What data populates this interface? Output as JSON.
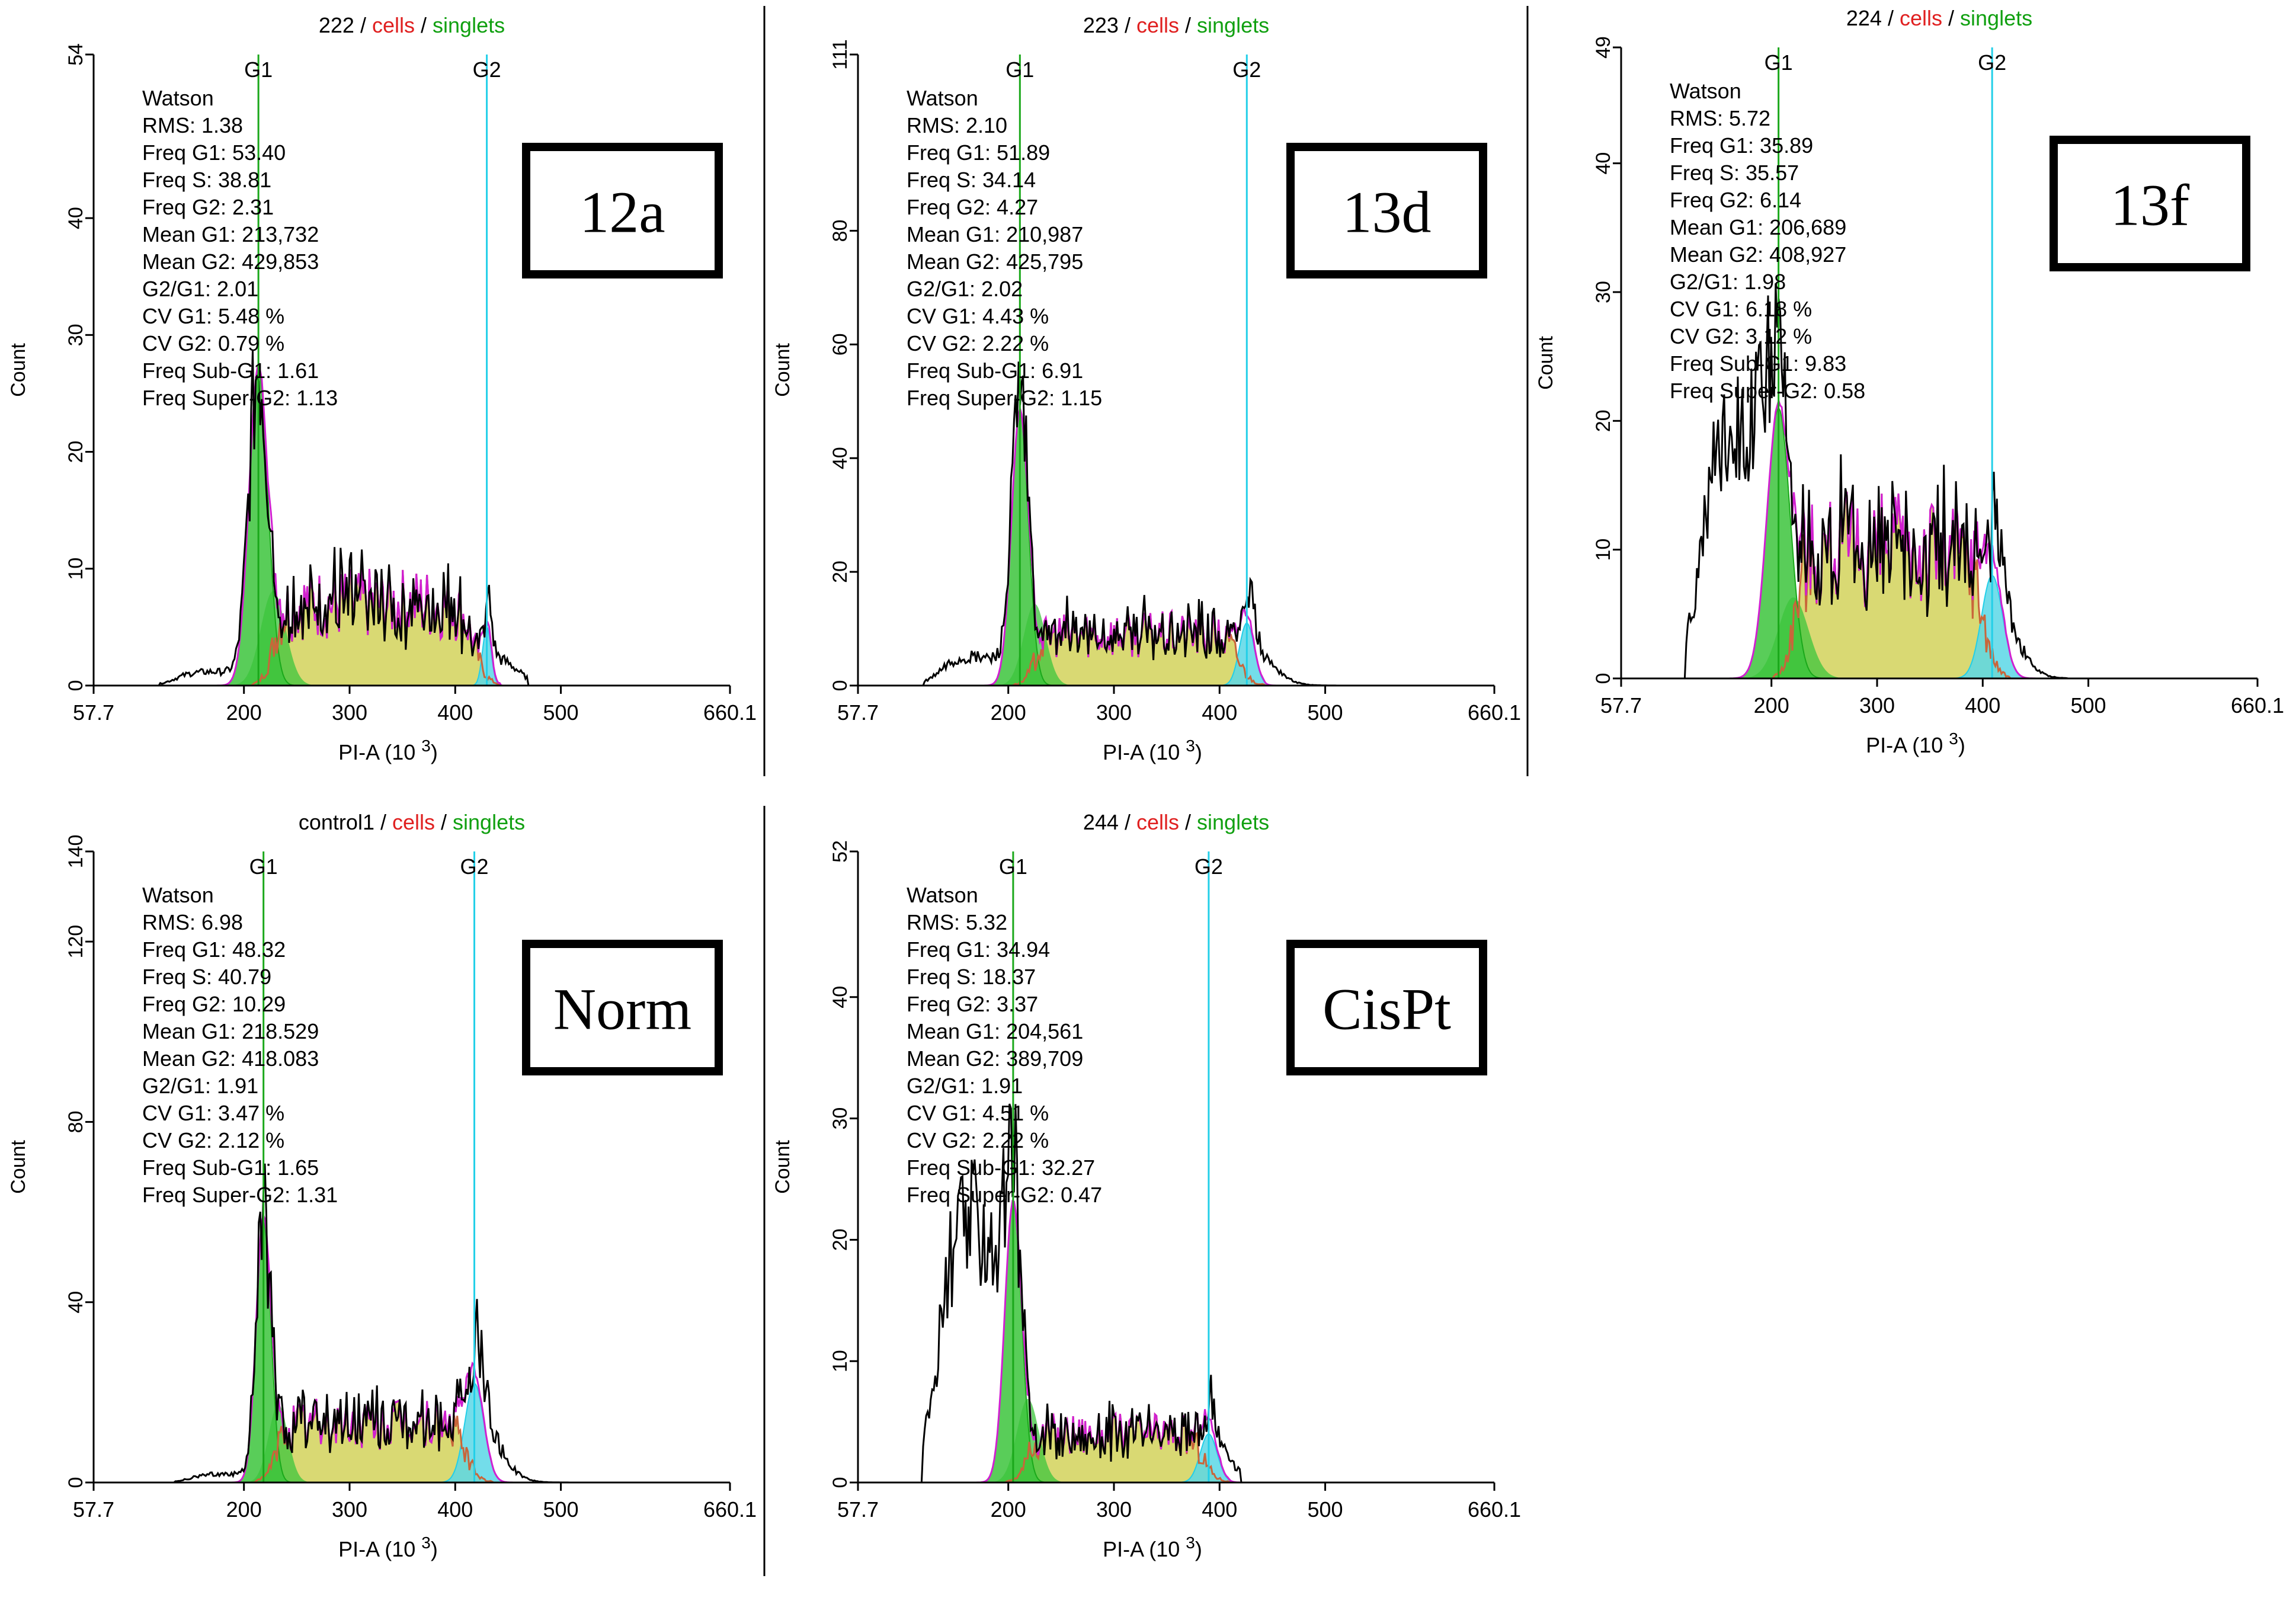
{
  "colors": {
    "g1_fill": "#3cc43c",
    "g1_line": "#1aa81a",
    "s_fill": "#d2d25a",
    "s_line": "#c9653a",
    "g2_fill": "#5ad7e6",
    "g2_line": "#22cfe8",
    "fit_line": "#d020d0",
    "raw_line": "#000000",
    "title_cells": "#e02020",
    "title_singlets": "#10a010"
  },
  "chart_data": [
    {
      "type": "area",
      "sample": "222",
      "title_parts": [
        "222",
        "cells",
        "singlets"
      ],
      "title_sep": " / ",
      "badge": "12a",
      "xlabel": "PI-A",
      "xlabel_unit": "(10",
      "xlabel_exp": "3",
      "xlabel_close": ")",
      "ylabel": "Count",
      "xlim": [
        57.7,
        660.1
      ],
      "ylim": [
        0,
        54
      ],
      "xticks": [
        "57.7",
        "200",
        "300",
        "400",
        "500",
        "660.1"
      ],
      "xtick_values": [
        57.7,
        200,
        300,
        400,
        500,
        660.1
      ],
      "yticks": [
        "0",
        "10",
        "20",
        "30",
        "40",
        "54"
      ],
      "ytick_values": [
        0,
        10,
        20,
        30,
        40,
        54
      ],
      "g1_label": "G1",
      "g2_label": "G2",
      "g1_marker": 213.7,
      "g2_marker": 429.9,
      "model": "Watson",
      "stats": [
        "RMS: 1.38",
        "Freq G1: 53.40",
        "Freq S: 38.81",
        "Freq G2: 2.31",
        "Mean G1: 213,732",
        "Mean G2: 429,853",
        "G2/G1: 2.01",
        "CV G1: 5.48 %",
        "CV G2: 0.79 %",
        "Freq Sub-G1: 1.61",
        "Freq Super-G2: 1.13"
      ],
      "g1": {
        "mean": 213.7,
        "sd": 9,
        "peak": 27
      },
      "s": {
        "start": 228,
        "end": 418,
        "level": 7
      },
      "g2": {
        "mean": 429.9,
        "sd": 4,
        "peak": 5
      },
      "raw_min": 120,
      "raw_max": 468,
      "sub_g1_level": 1.2
    },
    {
      "type": "area",
      "sample": "223",
      "title_parts": [
        "223",
        "cells",
        "singlets"
      ],
      "title_sep": " / ",
      "badge": "13d",
      "xlabel": "PI-A",
      "xlabel_unit": "(10",
      "xlabel_exp": "3",
      "xlabel_close": ")",
      "ylabel": "Count",
      "xlim": [
        57.7,
        660.1
      ],
      "ylim": [
        0,
        111
      ],
      "xticks": [
        "57.7",
        "200",
        "300",
        "400",
        "500",
        "660.1"
      ],
      "xtick_values": [
        57.7,
        200,
        300,
        400,
        500,
        660.1
      ],
      "yticks": [
        "0",
        "20",
        "40",
        "60",
        "80",
        "111"
      ],
      "ytick_values": [
        0,
        20,
        40,
        60,
        80,
        111
      ],
      "g1_label": "G1",
      "g2_label": "G2",
      "g1_marker": 211.0,
      "g2_marker": 425.8,
      "model": "Watson",
      "stats": [
        "RMS: 2.10",
        "Freq G1: 51.89",
        "Freq S: 34.14",
        "Freq G2: 4.27",
        "Mean G1: 210,987",
        "Mean G2: 425,795",
        "G2/G1: 2.02",
        "CV G1: 4.43 %",
        "CV G2: 2.22 %",
        "Freq Sub-G1: 6.91",
        "Freq Super-G2: 1.15"
      ],
      "g1": {
        "mean": 211.0,
        "sd": 8,
        "peak": 48
      },
      "s": {
        "start": 225,
        "end": 418,
        "level": 9
      },
      "g2": {
        "mean": 425.8,
        "sd": 7,
        "peak": 11
      },
      "raw_min": 120,
      "raw_max": 530,
      "sub_g1_level": 5
    },
    {
      "type": "area",
      "sample": "224",
      "title_parts": [
        "224",
        "cells",
        "singlets"
      ],
      "title_sep": " / ",
      "badge": "13f",
      "xlabel": "PI-A",
      "xlabel_unit": "(10",
      "xlabel_exp": "3",
      "xlabel_close": ")",
      "ylabel": "Count",
      "xlim": [
        57.7,
        660.1
      ],
      "ylim": [
        0,
        49
      ],
      "xticks": [
        "57.7",
        "200",
        "300",
        "400",
        "500",
        "660.1"
      ],
      "xtick_values": [
        57.7,
        200,
        300,
        400,
        500,
        660.1
      ],
      "yticks": [
        "0",
        "10",
        "20",
        "30",
        "40",
        "49"
      ],
      "ytick_values": [
        0,
        10,
        20,
        30,
        40,
        49
      ],
      "g1_label": "G1",
      "g2_label": "G2",
      "g1_marker": 206.7,
      "g2_marker": 408.9,
      "model": "Watson",
      "stats": [
        "RMS: 5.72",
        "Freq G1: 35.89",
        "Freq S: 35.57",
        "Freq G2: 6.14",
        "Mean G1: 206,689",
        "Mean G2: 408,927",
        "G2/G1: 1.98",
        "CV G1: 6.18 %",
        "CV G2: 3.12 %",
        "Freq Sub-G1: 9.83",
        "Freq Super-G2: 0.58"
      ],
      "g1": {
        "mean": 206.7,
        "sd": 11,
        "peak": 21
      },
      "s": {
        "start": 222,
        "end": 400,
        "level": 10
      },
      "g2": {
        "mean": 408.9,
        "sd": 10,
        "peak": 8
      },
      "raw_min": 118,
      "raw_max": 480,
      "sub_g1_level": 20
    },
    {
      "type": "area",
      "sample": "control1",
      "title_parts": [
        "control1",
        "cells",
        "singlets"
      ],
      "title_sep": " / ",
      "badge": "Norm",
      "xlabel": "PI-A",
      "xlabel_unit": "(10",
      "xlabel_exp": "3",
      "xlabel_close": ")",
      "ylabel": "Count",
      "xlim": [
        57.7,
        660.1
      ],
      "ylim": [
        0,
        140
      ],
      "xticks": [
        "57.7",
        "200",
        "300",
        "400",
        "500",
        "660.1"
      ],
      "xtick_values": [
        57.7,
        200,
        300,
        400,
        500,
        660.1
      ],
      "yticks": [
        "0",
        "40",
        "80",
        "120",
        "140"
      ],
      "ytick_values": [
        0,
        40,
        80,
        120,
        140
      ],
      "g1_label": "G1",
      "g2_label": "G2",
      "g1_marker": 218.5,
      "g2_marker": 418.1,
      "model": "Watson",
      "stats": [
        "RMS: 6.98",
        "Freq G1: 48.32",
        "Freq S: 40.79",
        "Freq G2: 10.29",
        "Mean G1: 218.529",
        "Mean G2: 418.083",
        "G2/G1: 1.91",
        "CV G1: 3.47 %",
        "CV G2: 2.12 %",
        "Freq Sub-G1: 1.65",
        "Freq Super-G2: 1.31"
      ],
      "g1": {
        "mean": 218.5,
        "sd": 7,
        "peak": 58
      },
      "s": {
        "start": 230,
        "end": 410,
        "level": 13
      },
      "g2": {
        "mean": 418.1,
        "sd": 9,
        "peak": 22
      },
      "raw_min": 135,
      "raw_max": 535,
      "sub_g1_level": 2
    },
    {
      "type": "area",
      "sample": "244",
      "title_parts": [
        "244",
        "cells",
        "singlets"
      ],
      "title_sep": " / ",
      "badge": "CisPt",
      "xlabel": "PI-A",
      "xlabel_unit": "(10",
      "xlabel_exp": "3",
      "xlabel_close": ")",
      "ylabel": "Count",
      "xlim": [
        57.7,
        660.1
      ],
      "ylim": [
        0,
        52
      ],
      "xticks": [
        "57.7",
        "200",
        "300",
        "400",
        "500",
        "660.1"
      ],
      "xtick_values": [
        57.7,
        200,
        300,
        400,
        500,
        660.1
      ],
      "yticks": [
        "0",
        "10",
        "20",
        "30",
        "40",
        "52"
      ],
      "ytick_values": [
        0,
        10,
        20,
        30,
        40,
        52
      ],
      "g1_label": "G1",
      "g2_label": "G2",
      "g1_marker": 204.6,
      "g2_marker": 389.7,
      "model": "Watson",
      "stats": [
        "RMS: 5.32",
        "Freq G1: 34.94",
        "Freq S: 18.37",
        "Freq G2: 3.37",
        "Mean G1: 204,561",
        "Mean G2: 389,709",
        "G2/G1: 1.91",
        "CV G1: 4.51 %",
        "CV G2: 2.22 %",
        "Freq Sub-G1: 32.27",
        "Freq Super-G2: 0.47"
      ],
      "g1": {
        "mean": 204.6,
        "sd": 8,
        "peak": 23
      },
      "s": {
        "start": 218,
        "end": 385,
        "level": 4
      },
      "g2": {
        "mean": 389.7,
        "sd": 8,
        "peak": 4
      },
      "raw_min": 118,
      "raw_max": 420,
      "sub_g1_level": 22
    }
  ]
}
